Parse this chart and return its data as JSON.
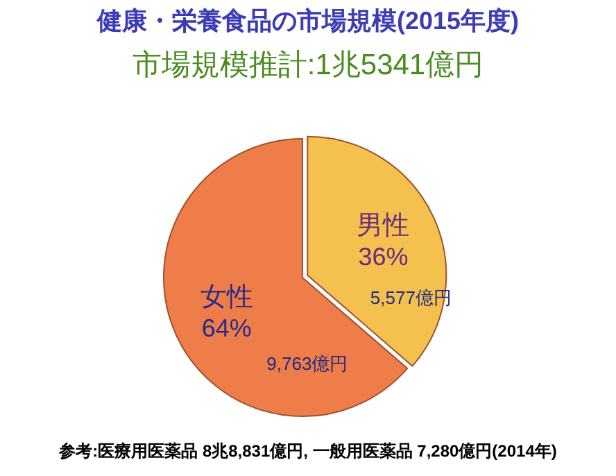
{
  "chart_data": {
    "type": "pie",
    "title": "健康・栄養食品の市場規模(2015年度)",
    "subtitle": "市場規模推計:1兆5341億円",
    "categories": [
      "男性",
      "女性"
    ],
    "values": [
      5577,
      9763
    ],
    "colors": [
      "#f4c04e",
      "#ee7d4a"
    ],
    "value_labels": [
      "5,577億円",
      "9,763億円"
    ],
    "annotations": [
      {
        "text": "36%",
        "x": "男性"
      },
      {
        "text": "64%",
        "x": "女性"
      },
      "参考:医療用医薬品 8兆8,831億円, 一般用医薬品 7,280億円(2014年)"
    ],
    "legend": false
  }
}
